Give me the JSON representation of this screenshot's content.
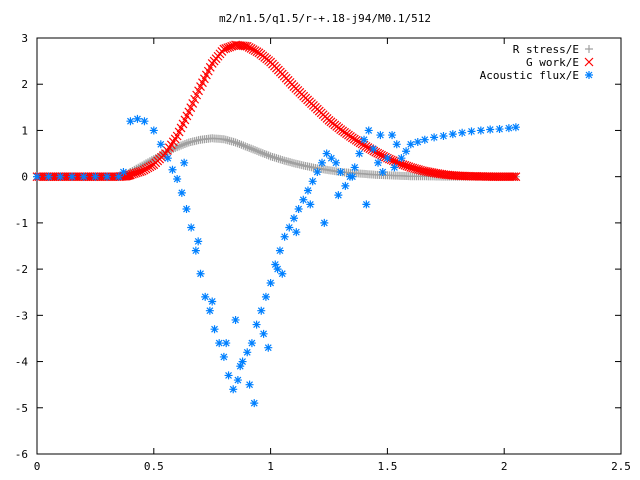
{
  "chart_data": {
    "type": "scatter",
    "title": "m2/n1.5/q1.5/r-+.18-j94/M0.1/512",
    "xlabel": "",
    "ylabel": "",
    "xlim": [
      0,
      2.5
    ],
    "ylim": [
      -6,
      3
    ],
    "grid": false,
    "legend_position": "top-right",
    "x_ticks": [
      0,
      0.5,
      1,
      1.5,
      2,
      2.5
    ],
    "x_tick_labels": [
      "0",
      "0.5",
      "1",
      "1.5",
      "2",
      "2.5"
    ],
    "y_ticks": [
      -6,
      -5,
      -4,
      -3,
      -2,
      -1,
      0,
      1,
      2,
      3
    ],
    "y_tick_labels": [
      "-6",
      "-5",
      "-4",
      "-3",
      "-2",
      "-1",
      "0",
      "1",
      "2",
      "3"
    ],
    "series": [
      {
        "name": "R stress/E",
        "marker": "+",
        "color": "#a0a0a0",
        "x": [
          0.0,
          0.05,
          0.1,
          0.15,
          0.2,
          0.25,
          0.3,
          0.35,
          0.38,
          0.4,
          0.45,
          0.5,
          0.55,
          0.6,
          0.65,
          0.7,
          0.75,
          0.8,
          0.85,
          0.9,
          0.95,
          1.0,
          1.05,
          1.1,
          1.15,
          1.2,
          1.25,
          1.3,
          1.35,
          1.4,
          1.45,
          1.5,
          1.55,
          1.6,
          1.65,
          1.7,
          1.75,
          1.8,
          1.85,
          1.9,
          1.95,
          2.0,
          2.05
        ],
        "y": [
          0,
          0,
          0,
          0,
          0,
          0,
          0,
          0,
          0.02,
          0.1,
          0.24,
          0.38,
          0.52,
          0.64,
          0.74,
          0.8,
          0.83,
          0.81,
          0.74,
          0.64,
          0.54,
          0.44,
          0.36,
          0.29,
          0.23,
          0.18,
          0.14,
          0.1,
          0.08,
          0.06,
          0.04,
          0.03,
          0.02,
          0.01,
          0.01,
          0.005,
          0,
          0,
          0,
          0,
          0,
          0,
          0
        ]
      },
      {
        "name": "G work/E",
        "marker": "x",
        "color": "#ff0000",
        "x": [
          0.0,
          0.05,
          0.1,
          0.15,
          0.2,
          0.25,
          0.3,
          0.35,
          0.38,
          0.4,
          0.45,
          0.5,
          0.55,
          0.6,
          0.65,
          0.7,
          0.75,
          0.8,
          0.85,
          0.9,
          0.95,
          1.0,
          1.05,
          1.1,
          1.15,
          1.2,
          1.25,
          1.3,
          1.35,
          1.4,
          1.45,
          1.5,
          1.55,
          1.6,
          1.65,
          1.7,
          1.75,
          1.8,
          1.85,
          1.9,
          1.95,
          2.0,
          2.05
        ],
        "y": [
          0,
          0,
          0,
          0,
          0,
          0,
          0,
          0,
          0.01,
          0.04,
          0.12,
          0.26,
          0.5,
          0.88,
          1.4,
          1.95,
          2.45,
          2.76,
          2.85,
          2.82,
          2.68,
          2.48,
          2.22,
          1.95,
          1.7,
          1.46,
          1.22,
          1.02,
          0.84,
          0.68,
          0.53,
          0.4,
          0.29,
          0.2,
          0.13,
          0.08,
          0.04,
          0.02,
          0.01,
          0.005,
          0,
          0,
          0
        ]
      },
      {
        "name": "Acoustic flux/E",
        "marker": "*",
        "color": "#0080ff",
        "x": [
          0.0,
          0.05,
          0.1,
          0.15,
          0.2,
          0.25,
          0.3,
          0.35,
          0.37,
          0.4,
          0.43,
          0.46,
          0.5,
          0.53,
          0.56,
          0.58,
          0.6,
          0.62,
          0.64,
          0.66,
          0.68,
          0.7,
          0.72,
          0.74,
          0.76,
          0.78,
          0.8,
          0.82,
          0.84,
          0.86,
          0.88,
          0.9,
          0.92,
          0.94,
          0.96,
          0.98,
          1.0,
          1.02,
          1.04,
          1.06,
          1.08,
          1.1,
          1.12,
          1.14,
          1.16,
          1.18,
          1.2,
          1.22,
          1.24,
          1.26,
          1.28,
          1.3,
          1.32,
          1.34,
          1.36,
          1.38,
          1.4,
          1.42,
          1.44,
          1.46,
          1.48,
          1.5,
          1.52,
          1.54,
          1.56,
          1.58,
          1.6,
          1.63,
          1.66,
          1.7,
          1.74,
          1.78,
          1.82,
          1.86,
          1.9,
          1.94,
          1.98,
          2.02,
          2.05,
          0.63,
          0.69,
          0.75,
          0.81,
          0.87,
          0.93,
          0.99,
          1.05,
          1.11,
          1.17,
          1.23,
          1.29,
          1.35,
          1.41,
          1.47,
          1.53,
          0.85,
          0.91,
          0.97,
          1.03
        ],
        "y": [
          0,
          0,
          0,
          0,
          0,
          0,
          0,
          0,
          0.1,
          1.2,
          1.25,
          1.2,
          1.0,
          0.7,
          0.4,
          0.15,
          -0.05,
          -0.35,
          -0.7,
          -1.1,
          -1.6,
          -2.1,
          -2.6,
          -2.9,
          -3.3,
          -3.6,
          -3.9,
          -4.3,
          -4.6,
          -4.4,
          -4.0,
          -3.8,
          -3.6,
          -3.2,
          -2.9,
          -2.6,
          -2.3,
          -1.9,
          -1.6,
          -1.3,
          -1.1,
          -0.9,
          -0.7,
          -0.5,
          -0.3,
          -0.1,
          0.1,
          0.3,
          0.5,
          0.4,
          0.3,
          0.1,
          -0.2,
          0.0,
          0.2,
          0.5,
          0.8,
          1.0,
          0.6,
          0.3,
          0.1,
          0.4,
          0.9,
          0.7,
          0.4,
          0.55,
          0.7,
          0.75,
          0.8,
          0.85,
          0.88,
          0.92,
          0.95,
          0.98,
          1.0,
          1.02,
          1.03,
          1.05,
          1.07,
          0.3,
          -1.4,
          -2.7,
          -3.6,
          -4.1,
          -4.9,
          -3.7,
          -2.1,
          -1.2,
          -0.6,
          -1.0,
          -0.4,
          0.0,
          -0.6,
          0.9,
          0.2,
          -3.1,
          -4.5,
          -3.4,
          -2.0
        ]
      }
    ]
  }
}
